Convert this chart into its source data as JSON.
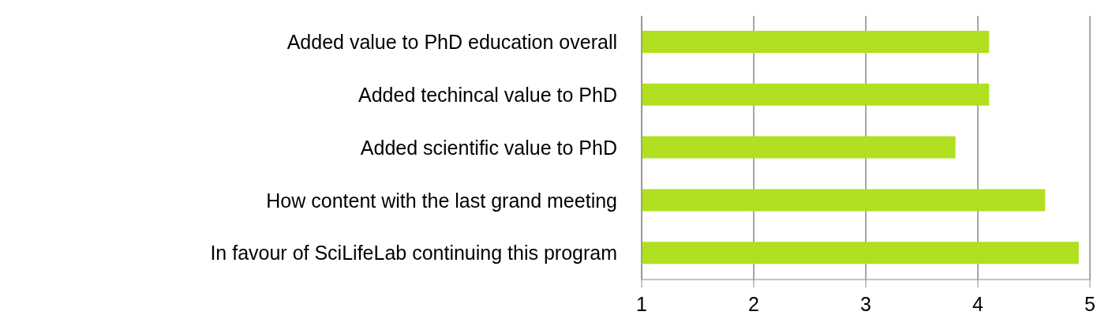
{
  "chart_data": {
    "type": "bar",
    "orientation": "horizontal",
    "categories": [
      "Added value to PhD education overall",
      "Added techincal value to PhD",
      "Added scientific value to PhD",
      "How content with the last grand meeting",
      "In favour of SciLifeLab continuing this program"
    ],
    "values": [
      4.1,
      4.1,
      3.8,
      4.6,
      4.9
    ],
    "color": "#b0e020",
    "xlim": [
      1,
      5
    ],
    "xticks": [
      1,
      2,
      3,
      4,
      5
    ],
    "grid": "x",
    "legend": false
  }
}
